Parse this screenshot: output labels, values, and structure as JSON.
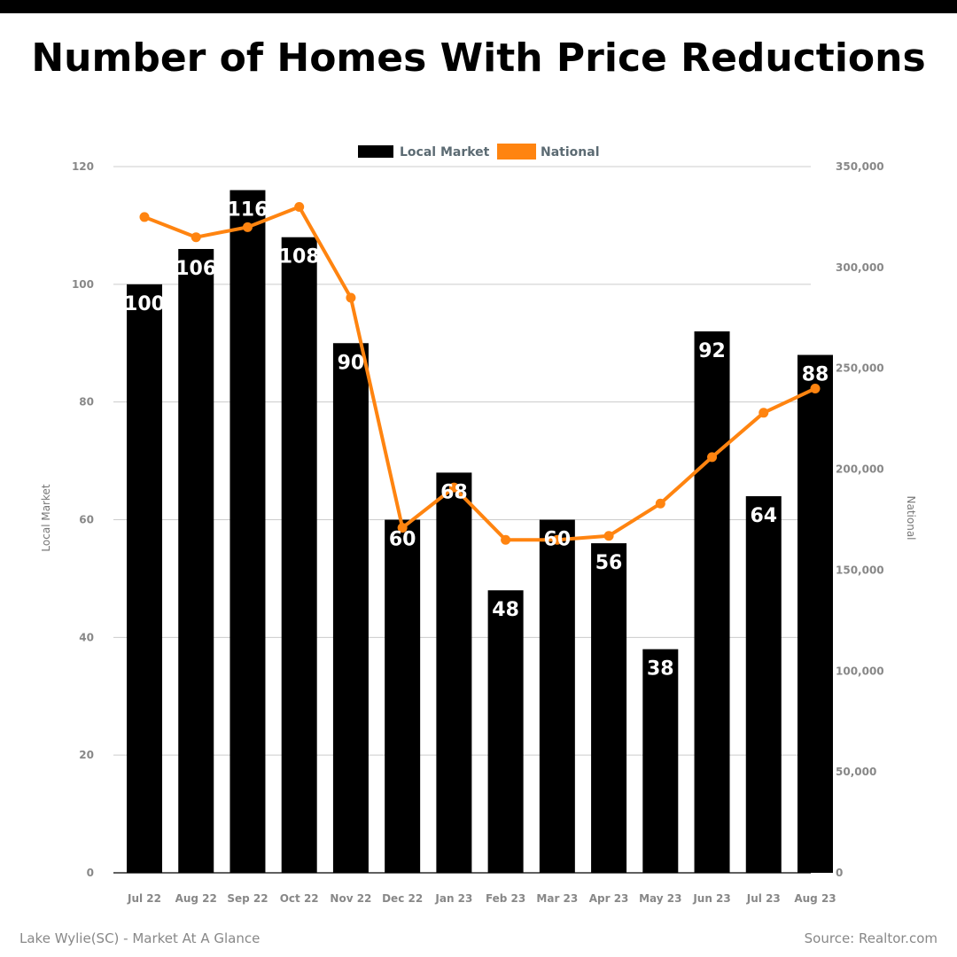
{
  "title": "Number of Homes With Price Reductions",
  "footer": {
    "left": "Lake Wylie(SC) - Market At A Glance",
    "right": "Source: Realtor.com"
  },
  "colors": {
    "bar": "#000000",
    "line": "#ff8410",
    "grid": "#cccccc",
    "tick": "#888888",
    "legend_text": "#5c6b73"
  },
  "chart_data": {
    "type": "bar",
    "categories": [
      "Jul 22",
      "Aug 22",
      "Sep 22",
      "Oct 22",
      "Nov 22",
      "Dec 22",
      "Jan 23",
      "Feb 23",
      "Mar 23",
      "Apr 23",
      "May 23",
      "Jun 23",
      "Jul 23",
      "Aug 23"
    ],
    "series": [
      {
        "name": "Local Market",
        "type": "bar",
        "axis": "left",
        "values": [
          100,
          106,
          116,
          108,
          90,
          60,
          68,
          48,
          60,
          56,
          38,
          92,
          64,
          88
        ]
      },
      {
        "name": "National",
        "type": "line",
        "axis": "right",
        "values": [
          325000,
          315000,
          320000,
          330000,
          285000,
          171000,
          191000,
          165000,
          165000,
          167000,
          183000,
          206000,
          228000,
          240000
        ]
      }
    ],
    "y_left": {
      "label": "Local Market",
      "range": [
        0,
        120
      ],
      "ticks": [
        0,
        20,
        40,
        60,
        80,
        100,
        120
      ],
      "tick_labels": [
        "0",
        "20",
        "40",
        "60",
        "80",
        "100",
        "120"
      ]
    },
    "y_right": {
      "label": "National",
      "range": [
        0,
        350000
      ],
      "ticks": [
        0,
        50000,
        100000,
        150000,
        200000,
        250000,
        300000,
        350000
      ],
      "tick_labels": [
        "0",
        "50,000",
        "100,000",
        "150,000",
        "200,000",
        "250,000",
        "300,000",
        "350,000"
      ]
    },
    "grid": true,
    "legend": {
      "position": "top-center",
      "entries": [
        "Local Market",
        "National"
      ]
    }
  }
}
